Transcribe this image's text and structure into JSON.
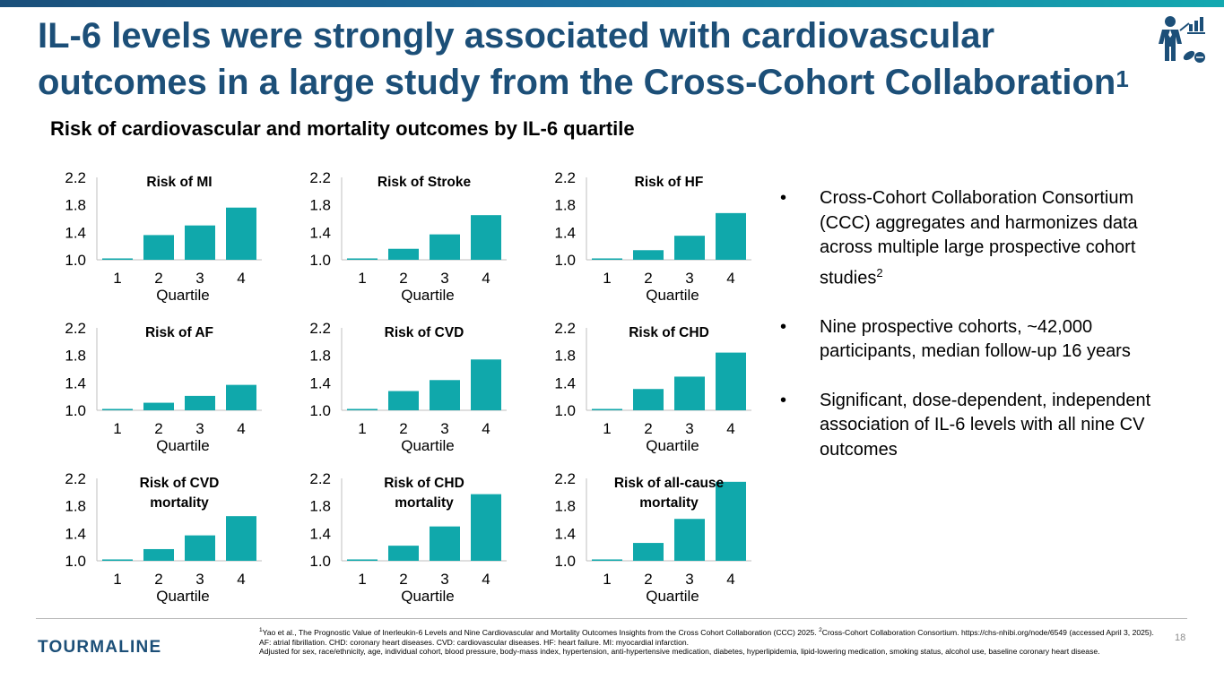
{
  "slide": {
    "title_main": "IL-6 levels were strongly associated with cardiovascular outcomes in a large study from the Cross-Cohort Collaboration",
    "title_sup": "1",
    "subtitle": "Risk of cardiovascular and mortality outcomes by IL-6 quartile",
    "page_number": "18",
    "logo_text": "TOURMALINE",
    "colors": {
      "title": "#1c4f78",
      "bar": "#10a8ab",
      "accent": "#13a9b0"
    },
    "icon": "researcher-with-chart-and-pills-icon"
  },
  "bullets": [
    {
      "text": "Cross-Cohort Collaboration Consortium (CCC) aggregates and harmonizes data across multiple large prospective cohort studies",
      "sup": "2"
    },
    {
      "text": "Nine prospective cohorts, ~42,000 participants, median follow-up 16 years",
      "sup": ""
    },
    {
      "text": "Significant, dose-dependent, independent association of IL-6 levels with all nine CV outcomes",
      "sup": ""
    }
  ],
  "footnotes": {
    "ref1_sup": "1",
    "ref1": "Yao et al., The Prognostic Value of Inerleukin-6 Levels and Nine Cardiovascular and Mortality Outcomes Insights from the Cross Cohort Collaboration (CCC) 2025. ",
    "ref2_sup": "2",
    "ref2": "Cross-Cohort Collaboration Consortium. https://chs-nhibi.org/node/6549 (accessed April 3, 2025).",
    "abbrev": "AF: atrial fibrillation. CHD: coronary heart diseases. CVD: cardiovascular diseases. HF: heart failure. MI: myocardial infarction.",
    "adjusted": "Adjusted for sex, race/ethnicity, age, individual cohort, blood pressure, body-mass index, hypertension, anti-hypertensive medication, diabetes, hyperlipidemia, lipid-lowering medication, smoking status, alcohol use, baseline coronary heart disease."
  },
  "chart_data": [
    {
      "type": "bar",
      "title": [
        "Risk of MI"
      ],
      "categories": [
        "1",
        "2",
        "3",
        "4"
      ],
      "values": [
        1.02,
        1.36,
        1.5,
        1.76
      ],
      "xlabel": "Quartile",
      "ylabel": "",
      "ylim": [
        1.0,
        2.2
      ],
      "yticks": [
        "1.0",
        "1.4",
        "1.8",
        "2.2"
      ]
    },
    {
      "type": "bar",
      "title": [
        "Risk of Stroke"
      ],
      "categories": [
        "1",
        "2",
        "3",
        "4"
      ],
      "values": [
        1.02,
        1.16,
        1.37,
        1.65
      ],
      "xlabel": "Quartile",
      "ylabel": "",
      "ylim": [
        1.0,
        2.2
      ],
      "yticks": [
        "1.0",
        "1.4",
        "1.8",
        "2.2"
      ]
    },
    {
      "type": "bar",
      "title": [
        "Risk of HF"
      ],
      "categories": [
        "1",
        "2",
        "3",
        "4"
      ],
      "values": [
        1.02,
        1.14,
        1.35,
        1.68
      ],
      "xlabel": "Quartile",
      "ylabel": "",
      "ylim": [
        1.0,
        2.2
      ],
      "yticks": [
        "1.0",
        "1.4",
        "1.8",
        "2.2"
      ]
    },
    {
      "type": "bar",
      "title": [
        "Risk of AF"
      ],
      "categories": [
        "1",
        "2",
        "3",
        "4"
      ],
      "values": [
        1.02,
        1.11,
        1.21,
        1.37
      ],
      "xlabel": "Quartile",
      "ylabel": "",
      "ylim": [
        1.0,
        2.2
      ],
      "yticks": [
        "1.0",
        "1.4",
        "1.8",
        "2.2"
      ]
    },
    {
      "type": "bar",
      "title": [
        "Risk of CVD"
      ],
      "categories": [
        "1",
        "2",
        "3",
        "4"
      ],
      "values": [
        1.02,
        1.28,
        1.44,
        1.74
      ],
      "xlabel": "Quartile",
      "ylabel": "",
      "ylim": [
        1.0,
        2.2
      ],
      "yticks": [
        "1.0",
        "1.4",
        "1.8",
        "2.2"
      ]
    },
    {
      "type": "bar",
      "title": [
        "Risk of CHD"
      ],
      "categories": [
        "1",
        "2",
        "3",
        "4"
      ],
      "values": [
        1.02,
        1.31,
        1.49,
        1.84
      ],
      "xlabel": "Quartile",
      "ylabel": "",
      "ylim": [
        1.0,
        2.2
      ],
      "yticks": [
        "1.0",
        "1.4",
        "1.8",
        "2.2"
      ]
    },
    {
      "type": "bar",
      "title": [
        "Risk of CVD",
        "mortality"
      ],
      "categories": [
        "1",
        "2",
        "3",
        "4"
      ],
      "values": [
        1.02,
        1.17,
        1.37,
        1.65
      ],
      "xlabel": "Quartile",
      "ylabel": "",
      "ylim": [
        1.0,
        2.2
      ],
      "yticks": [
        "1.0",
        "1.4",
        "1.8",
        "2.2"
      ]
    },
    {
      "type": "bar",
      "title": [
        "Risk of CHD",
        "mortality"
      ],
      "categories": [
        "1",
        "2",
        "3",
        "4"
      ],
      "values": [
        1.02,
        1.22,
        1.5,
        1.97
      ],
      "xlabel": "Quartile",
      "ylabel": "",
      "ylim": [
        1.0,
        2.2
      ],
      "yticks": [
        "1.0",
        "1.4",
        "1.8",
        "2.2"
      ]
    },
    {
      "type": "bar",
      "title": [
        "Risk of all-cause",
        "mortality"
      ],
      "categories": [
        "1",
        "2",
        "3",
        "4"
      ],
      "values": [
        1.02,
        1.26,
        1.61,
        2.15
      ],
      "xlabel": "Quartile",
      "ylabel": "",
      "ylim": [
        1.0,
        2.2
      ],
      "yticks": [
        "1.0",
        "1.4",
        "1.8",
        "2.2"
      ]
    }
  ]
}
